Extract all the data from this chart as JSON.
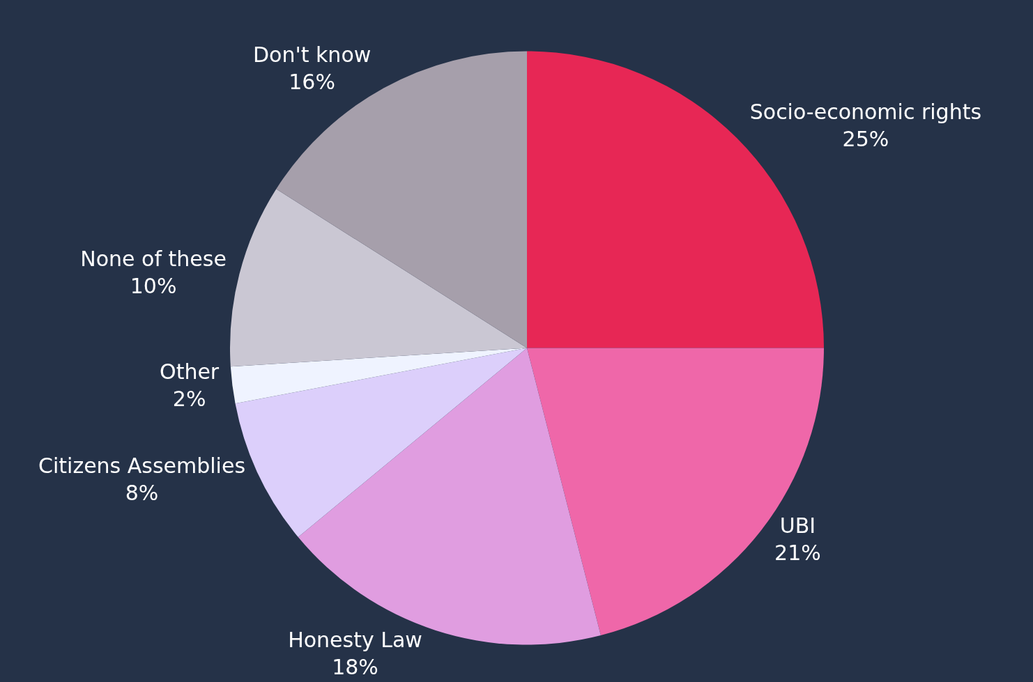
{
  "chart_data": {
    "type": "pie",
    "categories": [
      "Socio-economic rights",
      "UBI",
      "Honesty Law",
      "Citizens Assemblies",
      "Other",
      "None of these",
      "Don't know"
    ],
    "values": [
      25,
      21,
      18,
      8,
      2,
      10,
      16
    ],
    "value_labels": [
      "25%",
      "21%",
      "18%",
      "8%",
      "2%",
      "10%",
      "16%"
    ],
    "colors": [
      "#e72755",
      "#ef67a9",
      "#e09de0",
      "#dccffb",
      "#eff3ff",
      "#cac7d3",
      "#a69fab"
    ]
  }
}
